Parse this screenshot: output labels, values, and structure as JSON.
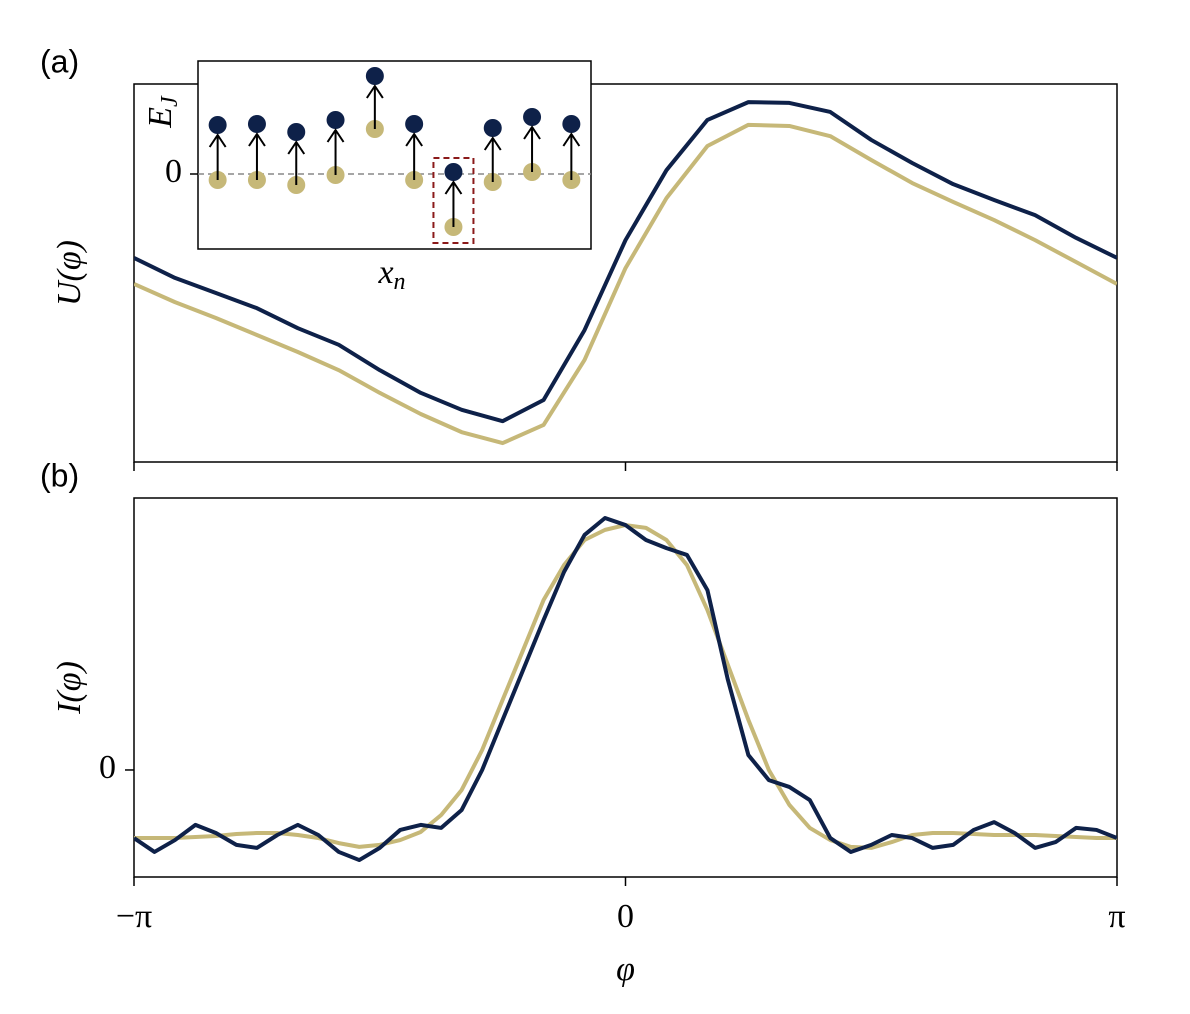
{
  "chart_data": [
    {
      "type": "line",
      "panel_label": "(a)",
      "ylabel": "U(φ)",
      "x": [
        -3.1416,
        -2.8798,
        -2.618,
        -2.3562,
        -2.0944,
        -1.8326,
        -1.5708,
        -1.309,
        -1.0472,
        -0.7854,
        -0.5236,
        -0.2618,
        0,
        0.2618,
        0.5236,
        0.7854,
        1.0472,
        1.309,
        1.5708,
        1.8326,
        2.0944,
        2.3562,
        2.618,
        2.8798,
        3.1416
      ],
      "series": [
        {
          "color": "#c6b878",
          "values": [
            0.471,
            0.423,
            0.381,
            0.336,
            0.291,
            0.243,
            0.183,
            0.127,
            0.079,
            0.05,
            0.098,
            0.27,
            0.513,
            0.698,
            0.836,
            0.892,
            0.889,
            0.862,
            0.799,
            0.738,
            0.688,
            0.64,
            0.587,
            0.529,
            0.471
          ]
        },
        {
          "color": "#0e2149",
          "values": [
            0.54,
            0.487,
            0.447,
            0.407,
            0.354,
            0.31,
            0.243,
            0.183,
            0.138,
            0.108,
            0.164,
            0.349,
            0.587,
            0.772,
            0.905,
            0.952,
            0.95,
            0.926,
            0.852,
            0.791,
            0.735,
            0.693,
            0.653,
            0.593,
            0.54
          ]
        }
      ],
      "xlim": [
        -3.1416,
        3.1416
      ],
      "ylim": [
        0,
        1
      ],
      "yticks": []
    },
    {
      "type": "scatter",
      "ylabel": "E",
      "ylabel_sub": "J",
      "xlabel": "x",
      "xlabel_sub": "n",
      "x": [
        0,
        1,
        2,
        3,
        4,
        5,
        6,
        7,
        8,
        9
      ],
      "series": [
        {
          "color": "#c6b878",
          "values": [
            -0.12,
            -0.12,
            -0.22,
            -0.02,
            0.9,
            -0.12,
            -1.06,
            -0.16,
            0.04,
            -0.12
          ]
        },
        {
          "color": "#0e2149",
          "values": [
            0.98,
            1.0,
            0.84,
            1.08,
            1.96,
            1.0,
            0.04,
            0.92,
            1.14,
            1.0
          ]
        }
      ],
      "highlight_index": 6,
      "highlight_color": "#8b1a1a",
      "xlim": [
        -0.5,
        9.5
      ],
      "ylim": [
        -1.5,
        2.26
      ],
      "yticks": [
        0
      ],
      "grid": "dashed"
    },
    {
      "type": "line",
      "panel_label": "(b)",
      "ylabel": "I(φ)",
      "xlabel": "φ",
      "x": [
        -3.1416,
        -3.0107,
        -2.8798,
        -2.7489,
        -2.618,
        -2.4871,
        -2.3562,
        -2.2253,
        -2.0944,
        -1.9635,
        -1.8326,
        -1.7017,
        -1.5708,
        -1.4399,
        -1.309,
        -1.1781,
        -1.0472,
        -0.9163,
        -0.7854,
        -0.6545,
        -0.5236,
        -0.3927,
        -0.2618,
        -0.1309,
        0,
        0.1309,
        0.2618,
        0.3927,
        0.5236,
        0.6545,
        0.7854,
        0.9163,
        1.0472,
        1.1781,
        1.309,
        1.4399,
        1.5708,
        1.7017,
        1.8326,
        1.9635,
        2.0944,
        2.2253,
        2.3562,
        2.4871,
        2.618,
        2.7489,
        2.8798,
        3.0107,
        3.1416
      ],
      "series": [
        {
          "color": "#c6b878",
          "values": [
            -0.269,
            -0.269,
            -0.269,
            -0.265,
            -0.261,
            -0.253,
            -0.249,
            -0.249,
            -0.257,
            -0.269,
            -0.289,
            -0.304,
            -0.296,
            -0.277,
            -0.245,
            -0.178,
            -0.079,
            0.079,
            0.277,
            0.474,
            0.672,
            0.81,
            0.909,
            0.949,
            0.968,
            0.957,
            0.909,
            0.81,
            0.632,
            0.415,
            0.198,
            0,
            -0.138,
            -0.229,
            -0.277,
            -0.304,
            -0.308,
            -0.285,
            -0.257,
            -0.249,
            -0.249,
            -0.253,
            -0.257,
            -0.257,
            -0.257,
            -0.261,
            -0.265,
            -0.269,
            -0.269
          ]
        },
        {
          "color": "#0e2149",
          "values": [
            -0.269,
            -0.324,
            -0.277,
            -0.217,
            -0.249,
            -0.296,
            -0.308,
            -0.257,
            -0.217,
            -0.257,
            -0.324,
            -0.356,
            -0.308,
            -0.237,
            -0.217,
            -0.229,
            -0.158,
            0,
            0.198,
            0.395,
            0.593,
            0.783,
            0.929,
            0.996,
            0.968,
            0.909,
            0.877,
            0.85,
            0.711,
            0.356,
            0.059,
            -0.04,
            -0.067,
            -0.119,
            -0.269,
            -0.324,
            -0.296,
            -0.257,
            -0.269,
            -0.308,
            -0.296,
            -0.237,
            -0.206,
            -0.249,
            -0.308,
            -0.285,
            -0.229,
            -0.237,
            -0.269
          ]
        }
      ],
      "xlim": [
        -3.1416,
        3.1416
      ],
      "ylim": [
        -0.423,
        1.075
      ],
      "yticks": [
        0
      ],
      "xticks": [
        {
          "value": -3.1416,
          "label": "−π"
        },
        0,
        {
          "value": 3.1416,
          "label": "π"
        }
      ]
    }
  ]
}
